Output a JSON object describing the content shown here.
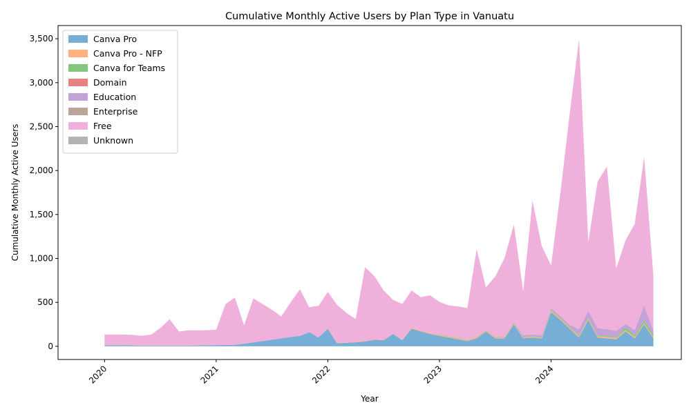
{
  "chart_data": {
    "type": "area",
    "stacked": true,
    "title": "Cumulative Monthly Active Users by Plan Type in Vanuatu",
    "xlabel": "Year",
    "ylabel": "Cumulative Monthly Active Users",
    "x_ticks": [
      "2020",
      "2021",
      "2022",
      "2023",
      "2024"
    ],
    "y_ticks": [
      "0",
      "500",
      "1,000",
      "1,500",
      "2,000",
      "2,500",
      "3,000",
      "3,500"
    ],
    "ylim": [
      -150,
      3650
    ],
    "xlim": [
      "2019-08",
      "2025-03"
    ],
    "grid": false,
    "legend_position": "top-left",
    "months": [
      "2020-01",
      "2020-02",
      "2020-03",
      "2020-04",
      "2020-05",
      "2020-06",
      "2020-07",
      "2020-08",
      "2020-09",
      "2020-10",
      "2020-11",
      "2020-12",
      "2021-01",
      "2021-02",
      "2021-03",
      "2021-04",
      "2021-05",
      "2021-06",
      "2021-07",
      "2021-08",
      "2021-09",
      "2021-10",
      "2021-11",
      "2021-12",
      "2022-01",
      "2022-02",
      "2022-03",
      "2022-04",
      "2022-05",
      "2022-06",
      "2022-07",
      "2022-08",
      "2022-09",
      "2022-10",
      "2022-11",
      "2022-12",
      "2023-01",
      "2023-02",
      "2023-03",
      "2023-04",
      "2023-05",
      "2023-06",
      "2023-07",
      "2023-08",
      "2023-09",
      "2023-10",
      "2023-11",
      "2023-12",
      "2024-01",
      "2024-02",
      "2024-03",
      "2024-04",
      "2024-05",
      "2024-06",
      "2024-07",
      "2024-08",
      "2024-09",
      "2024-10",
      "2024-11",
      "2024-12"
    ],
    "series": [
      {
        "name": "Canva Pro",
        "color": "#77aed6",
        "values": [
          10,
          12,
          12,
          10,
          8,
          8,
          8,
          8,
          8,
          8,
          10,
          12,
          14,
          15,
          16,
          30,
          45,
          60,
          75,
          90,
          105,
          120,
          160,
          100,
          200,
          35,
          40,
          45,
          55,
          75,
          70,
          140,
          70,
          200,
          170,
          140,
          120,
          100,
          80,
          60,
          90,
          170,
          90,
          90,
          250,
          90,
          100,
          90,
          390,
          300,
          200,
          100,
          300,
          100,
          90,
          80,
          170,
          90,
          250,
          90
        ]
      },
      {
        "name": "Canva Pro - NFP",
        "color": "#ffb27c",
        "values": [
          0,
          0,
          0,
          0,
          0,
          0,
          0,
          0,
          0,
          0,
          0,
          0,
          0,
          0,
          0,
          0,
          0,
          0,
          0,
          0,
          0,
          0,
          0,
          0,
          0,
          5,
          5,
          5,
          5,
          5,
          5,
          5,
          5,
          10,
          10,
          10,
          10,
          10,
          10,
          10,
          10,
          10,
          10,
          10,
          10,
          10,
          10,
          10,
          15,
          15,
          15,
          15,
          15,
          15,
          15,
          15,
          15,
          15,
          15,
          15
        ]
      },
      {
        "name": "Canva for Teams",
        "color": "#84c67e",
        "values": [
          0,
          0,
          0,
          0,
          0,
          0,
          0,
          0,
          0,
          0,
          0,
          0,
          0,
          0,
          0,
          0,
          0,
          0,
          0,
          0,
          0,
          0,
          0,
          0,
          0,
          0,
          0,
          0,
          0,
          0,
          0,
          0,
          0,
          0,
          0,
          0,
          5,
          5,
          5,
          5,
          5,
          5,
          5,
          5,
          10,
          5,
          5,
          5,
          10,
          10,
          10,
          10,
          10,
          10,
          10,
          10,
          30,
          20,
          30,
          30
        ]
      },
      {
        "name": "Domain",
        "color": "#e88183",
        "values": [
          0,
          0,
          0,
          0,
          0,
          0,
          0,
          0,
          0,
          0,
          0,
          0,
          0,
          0,
          0,
          0,
          0,
          0,
          0,
          0,
          0,
          0,
          0,
          0,
          0,
          0,
          0,
          0,
          0,
          0,
          0,
          0,
          0,
          0,
          0,
          0,
          0,
          0,
          0,
          0,
          0,
          0,
          0,
          0,
          0,
          0,
          0,
          0,
          0,
          0,
          0,
          0,
          0,
          0,
          0,
          0,
          0,
          0,
          0,
          0
        ]
      },
      {
        "name": "Education",
        "color": "#c3a2d8",
        "values": [
          0,
          0,
          0,
          0,
          0,
          0,
          0,
          0,
          0,
          0,
          0,
          0,
          0,
          0,
          0,
          0,
          0,
          0,
          0,
          0,
          0,
          0,
          0,
          0,
          0,
          0,
          0,
          0,
          0,
          0,
          0,
          0,
          0,
          0,
          0,
          0,
          0,
          0,
          0,
          0,
          0,
          0,
          0,
          0,
          0,
          20,
          20,
          20,
          20,
          20,
          20,
          70,
          80,
          80,
          80,
          70,
          40,
          60,
          170,
          40
        ]
      },
      {
        "name": "Enterprise",
        "color": "#bea39a",
        "values": [
          0,
          0,
          0,
          0,
          0,
          0,
          0,
          0,
          0,
          0,
          0,
          0,
          0,
          0,
          0,
          0,
          0,
          0,
          0,
          0,
          0,
          0,
          0,
          0,
          0,
          0,
          0,
          0,
          0,
          0,
          0,
          0,
          0,
          0,
          0,
          0,
          0,
          0,
          0,
          0,
          0,
          0,
          0,
          0,
          0,
          0,
          0,
          0,
          0,
          0,
          0,
          0,
          0,
          0,
          0,
          0,
          0,
          0,
          0,
          0
        ]
      },
      {
        "name": "Free",
        "color": "#f0b0dc",
        "values": [
          125,
          123,
          122,
          120,
          112,
          125,
          200,
          300,
          160,
          175,
          172,
          172,
          175,
          465,
          540,
          210,
          500,
          420,
          340,
          250,
          395,
          530,
          285,
          360,
          420,
          430,
          335,
          260,
          840,
          720,
          560,
          385,
          405,
          425,
          380,
          430,
          370,
          350,
          360,
          360,
          1000,
          485,
          690,
          900,
          1115,
          500,
          1520,
          1015,
          485,
          1400,
          2400,
          3300,
          780,
          1670,
          1850,
          710,
          950,
          1210,
          1690,
          620
        ]
      },
      {
        "name": "Unknown",
        "color": "#b3b3b3",
        "values": [
          0,
          0,
          0,
          0,
          0,
          0,
          0,
          0,
          0,
          0,
          0,
          0,
          0,
          0,
          0,
          0,
          0,
          0,
          0,
          0,
          0,
          0,
          0,
          0,
          0,
          0,
          0,
          0,
          0,
          0,
          0,
          0,
          0,
          0,
          0,
          0,
          0,
          0,
          0,
          0,
          0,
          0,
          0,
          0,
          0,
          0,
          0,
          0,
          0,
          0,
          0,
          0,
          0,
          0,
          0,
          0,
          0,
          0,
          0,
          0
        ]
      }
    ]
  }
}
